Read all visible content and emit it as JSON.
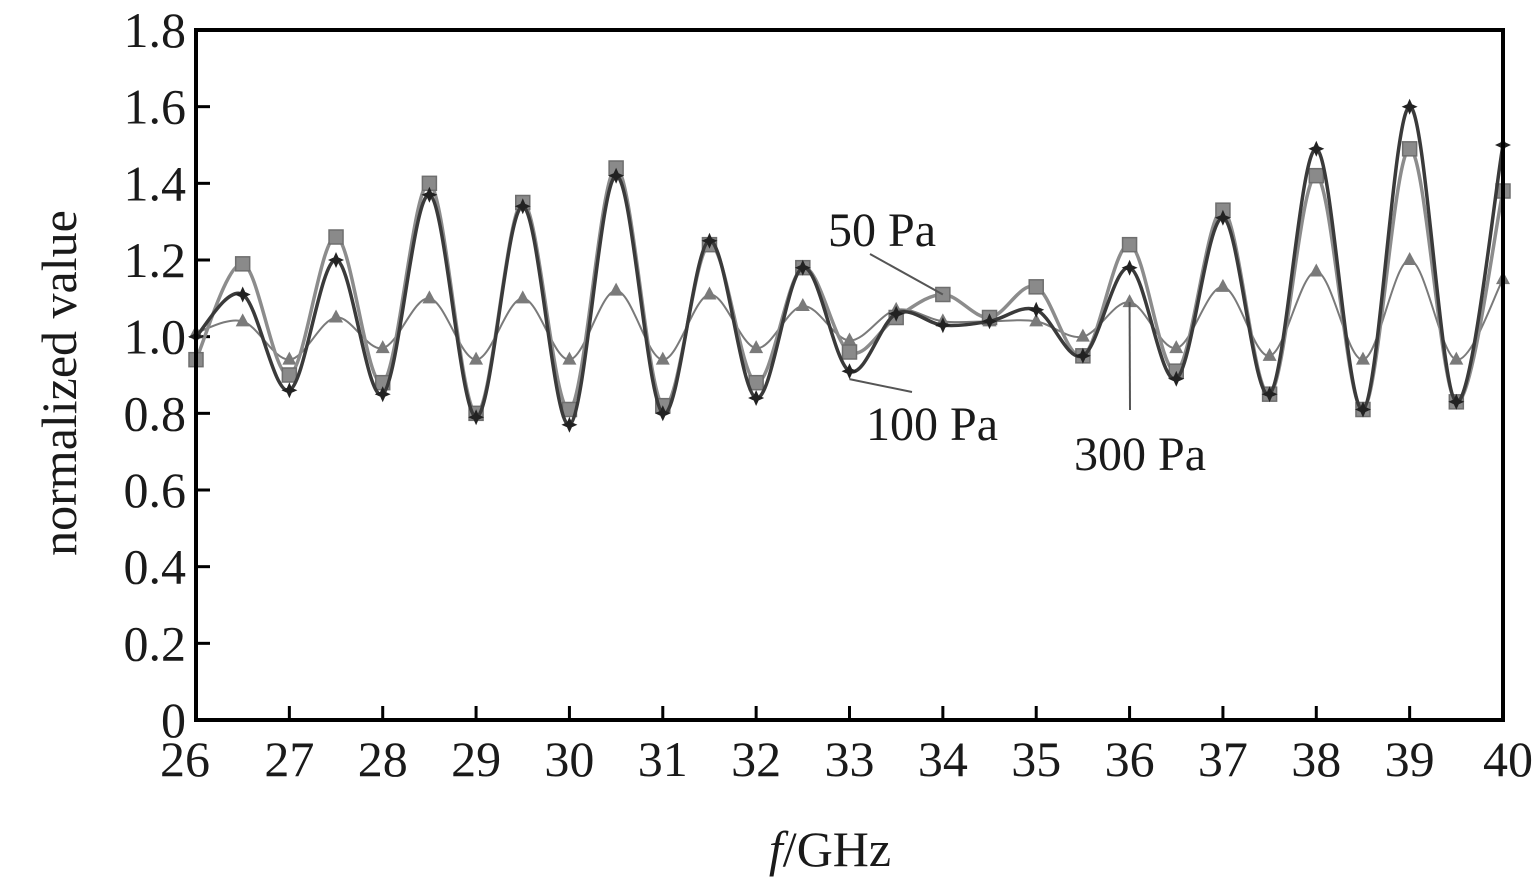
{
  "chart_data": {
    "type": "line",
    "title": "",
    "xlabel_italic": "f",
    "xlabel_rest": "/GHz",
    "ylabel": "normalized value",
    "xlim": [
      26,
      40
    ],
    "ylim": [
      0,
      1.8
    ],
    "xticks": [
      "26",
      "27",
      "28",
      "29",
      "30",
      "31",
      "32",
      "33",
      "34",
      "35",
      "36",
      "37",
      "38",
      "39",
      "40"
    ],
    "yticks": [
      "0",
      "0.2",
      "0.4",
      "0.6",
      "0.8",
      "1.0",
      "1.2",
      "1.4",
      "1.6",
      "1.8"
    ],
    "grid": false,
    "x": [
      26,
      26.5,
      27,
      27.5,
      28,
      28.5,
      29,
      29.5,
      30,
      30.5,
      31,
      31.5,
      32,
      32.5,
      33,
      33.5,
      34,
      34.5,
      35,
      35.5,
      36,
      36.5,
      37,
      37.5,
      38,
      38.5,
      39,
      39.5,
      40
    ],
    "series": [
      {
        "name": "50 Pa",
        "marker": "square",
        "color": "#8c8c8c",
        "values": [
          0.94,
          1.19,
          0.9,
          1.26,
          0.88,
          1.4,
          0.8,
          1.35,
          0.81,
          1.44,
          0.82,
          1.24,
          0.88,
          1.18,
          0.96,
          1.05,
          1.11,
          1.05,
          1.13,
          0.95,
          1.24,
          0.91,
          1.33,
          0.85,
          1.42,
          0.81,
          1.49,
          0.83,
          1.38
        ]
      },
      {
        "name": "100 Pa",
        "marker": "star",
        "color": "#3a3a3a",
        "values": [
          1.0,
          1.11,
          0.86,
          1.2,
          0.85,
          1.37,
          0.79,
          1.34,
          0.77,
          1.42,
          0.8,
          1.25,
          0.84,
          1.18,
          0.91,
          1.06,
          1.03,
          1.04,
          1.07,
          0.95,
          1.18,
          0.89,
          1.31,
          0.85,
          1.49,
          0.81,
          1.6,
          0.83,
          1.5
        ]
      },
      {
        "name": "300 Pa",
        "marker": "triangle",
        "color": "#7a7a7a",
        "values": [
          1.01,
          1.04,
          0.94,
          1.05,
          0.97,
          1.1,
          0.94,
          1.1,
          0.94,
          1.12,
          0.94,
          1.11,
          0.97,
          1.08,
          0.99,
          1.07,
          1.04,
          1.04,
          1.04,
          1.0,
          1.09,
          0.97,
          1.13,
          0.95,
          1.17,
          0.94,
          1.2,
          0.94,
          1.15
        ]
      }
    ],
    "annotations": [
      {
        "text": "50 Pa",
        "series": "50 Pa"
      },
      {
        "text": "100 Pa",
        "series": "100 Pa"
      },
      {
        "text": "300 Pa",
        "series": "300 Pa"
      }
    ]
  }
}
